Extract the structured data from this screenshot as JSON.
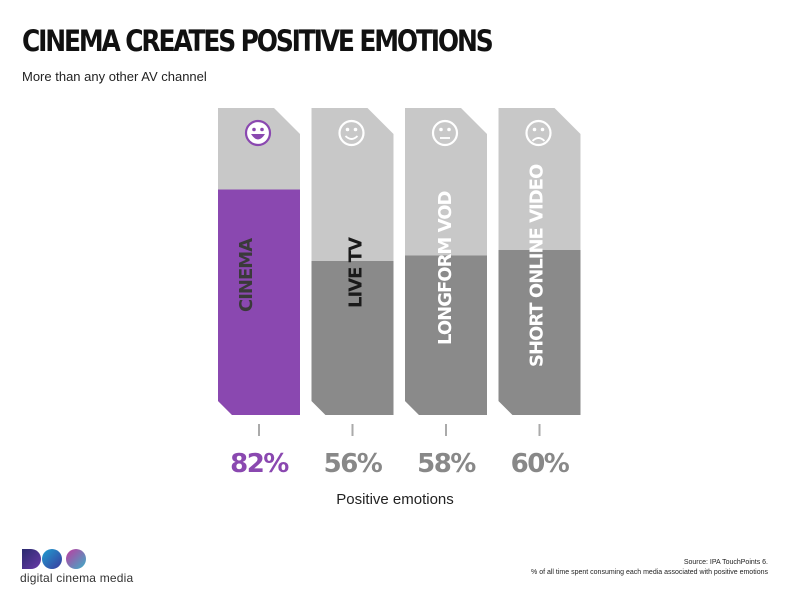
{
  "slide": {
    "title": "CINEMA CREATES POSITIVE EMOTIONS",
    "subtitle": "More than any other AV channel",
    "logo_text": "digital cinema media",
    "source_line1": "Source: IPA TouchPoints 6.",
    "source_line2": "% of all time spent consuming each media associated with positive emotions"
  },
  "colors": {
    "cinema": "#8a48b0",
    "bar": "#8a8a8a",
    "bar_top": "#c8c8c8",
    "white": "#ffffff"
  },
  "chart_data": {
    "type": "bar",
    "categories": [
      "CINEMA",
      "LIVE TV",
      "LONGFORM VOD",
      "SHORT ONLINE VIDEO"
    ],
    "values": [
      82,
      56,
      58,
      60
    ],
    "value_labels": [
      "82%",
      "56%",
      "58%",
      "60%"
    ],
    "faces": [
      "big-smile-face-icon",
      "smile-face-icon",
      "neutral-face-icon",
      "sad-face-icon"
    ],
    "xlabel": "Positive emotions",
    "ylabel": "",
    "ylim": [
      0,
      100
    ],
    "highlight": "CINEMA",
    "grid": false,
    "legend": "none"
  }
}
